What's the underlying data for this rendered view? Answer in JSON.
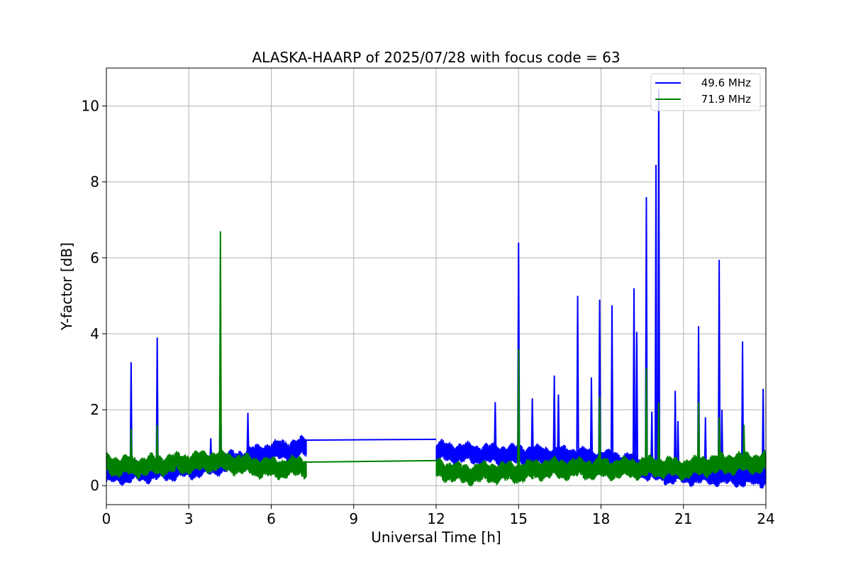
{
  "chart_data": {
    "type": "line",
    "title": "ALASKA-HAARP of 2025/07/28 with focus code = 63",
    "xlabel": "Universal Time [h]",
    "ylabel": "Y-factor [dB]",
    "xlim": [
      0,
      24
    ],
    "ylim": [
      -0.5,
      11
    ],
    "xticks": [
      0,
      3,
      6,
      9,
      12,
      15,
      18,
      21,
      24
    ],
    "yticks": [
      0,
      2,
      4,
      6,
      8,
      10
    ],
    "grid": true,
    "legend_position": "top-right",
    "series": [
      {
        "name": "49.6 MHz",
        "color": "#0000ff",
        "segment1_span": [
          0,
          7.28
        ],
        "segment2_span": [
          12.0,
          24
        ],
        "gap_line": [
          [
            7.28,
            1.2
          ],
          [
            12.0,
            1.22
          ]
        ],
        "baseline": [
          [
            0,
            0.3
          ],
          [
            1,
            0.35
          ],
          [
            2,
            0.4
          ],
          [
            3,
            0.45
          ],
          [
            4,
            0.55
          ],
          [
            5,
            0.7
          ],
          [
            6,
            0.9
          ],
          [
            7.2,
            1.0
          ],
          [
            12.0,
            0.9
          ],
          [
            13,
            0.85
          ],
          [
            15,
            0.8
          ],
          [
            17,
            0.75
          ],
          [
            19,
            0.6
          ],
          [
            20,
            0.35
          ],
          [
            21,
            0.3
          ],
          [
            22,
            0.3
          ],
          [
            23,
            0.25
          ],
          [
            24,
            0.25
          ]
        ],
        "spikes": [
          [
            0.9,
            3.25
          ],
          [
            1.85,
            3.9
          ],
          [
            3.8,
            1.25
          ],
          [
            4.15,
            3.4
          ],
          [
            5.15,
            1.92
          ],
          [
            14.15,
            2.2
          ],
          [
            15.0,
            6.4
          ],
          [
            15.5,
            2.3
          ],
          [
            16.3,
            2.9
          ],
          [
            16.45,
            2.4
          ],
          [
            17.15,
            5.0
          ],
          [
            17.65,
            2.85
          ],
          [
            17.95,
            4.9
          ],
          [
            18.4,
            4.75
          ],
          [
            19.2,
            5.2
          ],
          [
            19.3,
            4.05
          ],
          [
            19.65,
            7.6
          ],
          [
            19.85,
            1.95
          ],
          [
            20.0,
            8.45
          ],
          [
            20.1,
            10.45
          ],
          [
            20.7,
            2.5
          ],
          [
            20.8,
            1.7
          ],
          [
            21.55,
            4.2
          ],
          [
            21.8,
            1.8
          ],
          [
            22.3,
            5.95
          ],
          [
            22.4,
            2.0
          ],
          [
            23.15,
            3.8
          ],
          [
            23.9,
            2.55
          ]
        ]
      },
      {
        "name": "71.9 MHz",
        "color": "#008000",
        "segment1_span": [
          0,
          7.28
        ],
        "segment2_span": [
          12.0,
          24
        ],
        "gap_line": [
          [
            7.28,
            0.62
          ],
          [
            12.0,
            0.66
          ]
        ],
        "baseline": [
          [
            0,
            0.55
          ],
          [
            1,
            0.5
          ],
          [
            2,
            0.55
          ],
          [
            3,
            0.6
          ],
          [
            4,
            0.65
          ],
          [
            5,
            0.55
          ],
          [
            6,
            0.45
          ],
          [
            7.2,
            0.5
          ],
          [
            12.0,
            0.45
          ],
          [
            13,
            0.3
          ],
          [
            14,
            0.35
          ],
          [
            15,
            0.35
          ],
          [
            16,
            0.45
          ],
          [
            17,
            0.45
          ],
          [
            18,
            0.45
          ],
          [
            19,
            0.45
          ],
          [
            20,
            0.5
          ],
          [
            21,
            0.45
          ],
          [
            22,
            0.55
          ],
          [
            23,
            0.6
          ],
          [
            24,
            0.6
          ]
        ],
        "spikes": [
          [
            0.9,
            1.5
          ],
          [
            1.85,
            1.6
          ],
          [
            4.15,
            6.7
          ],
          [
            15.0,
            3.6
          ],
          [
            17.95,
            2.35
          ],
          [
            19.65,
            3.1
          ],
          [
            20.1,
            2.2
          ],
          [
            21.55,
            2.2
          ],
          [
            22.3,
            1.8
          ],
          [
            23.2,
            1.6
          ]
        ]
      }
    ]
  }
}
